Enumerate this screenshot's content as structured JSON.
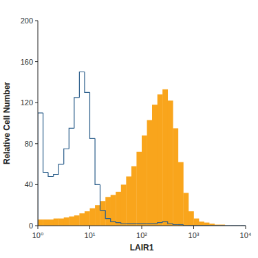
{
  "chart_data": {
    "type": "histogram",
    "xlabel": "LAIR1",
    "ylabel": "Relative Cell Number",
    "log": "x",
    "bins": [
      1,
      1.26,
      1.58,
      2,
      2.51,
      3.16,
      3.98,
      5.01,
      6.31,
      7.94,
      10,
      12.6,
      15.8,
      20,
      25.1,
      31.6,
      39.8,
      50.1,
      63.1,
      79.4,
      100,
      126,
      158,
      200,
      251,
      316,
      398,
      501,
      631,
      794,
      1000,
      1259,
      1585,
      1995,
      2512,
      3162,
      3981,
      5012,
      6310,
      7943,
      10000
    ],
    "series": [
      {
        "type": "area",
        "color": "#f9a51c",
        "values": [
          6,
          6,
          6,
          7,
          7,
          8,
          9,
          10,
          12,
          14,
          17,
          20,
          24,
          28,
          30,
          33,
          40,
          48,
          58,
          72,
          88,
          103,
          118,
          128,
          133,
          122,
          95,
          62,
          32,
          14,
          7,
          4,
          3,
          2,
          1,
          1,
          0,
          0,
          0,
          0
        ]
      },
      {
        "type": "line",
        "color": "#2a5d8a",
        "values": [
          110,
          52,
          48,
          50,
          60,
          75,
          95,
          125,
          150,
          130,
          85,
          40,
          15,
          7,
          4,
          3,
          2,
          2,
          2,
          2,
          2,
          2,
          2,
          3,
          4,
          2,
          1,
          1,
          0,
          0,
          0,
          0,
          0,
          0,
          0,
          0,
          0,
          0,
          0,
          0
        ]
      }
    ],
    "xlim": [
      1,
      10000
    ],
    "xticks": [
      {
        "value": 1,
        "label": "10⁰"
      },
      {
        "value": 10,
        "label": "10¹"
      },
      {
        "value": 100,
        "label": "10²"
      },
      {
        "value": 1000,
        "label": "10³"
      },
      {
        "value": 10000,
        "label": "10⁴"
      }
    ],
    "ylim": [
      0,
      200
    ],
    "yticks": [
      0,
      40,
      80,
      120,
      160,
      200
    ],
    "grid": false
  }
}
